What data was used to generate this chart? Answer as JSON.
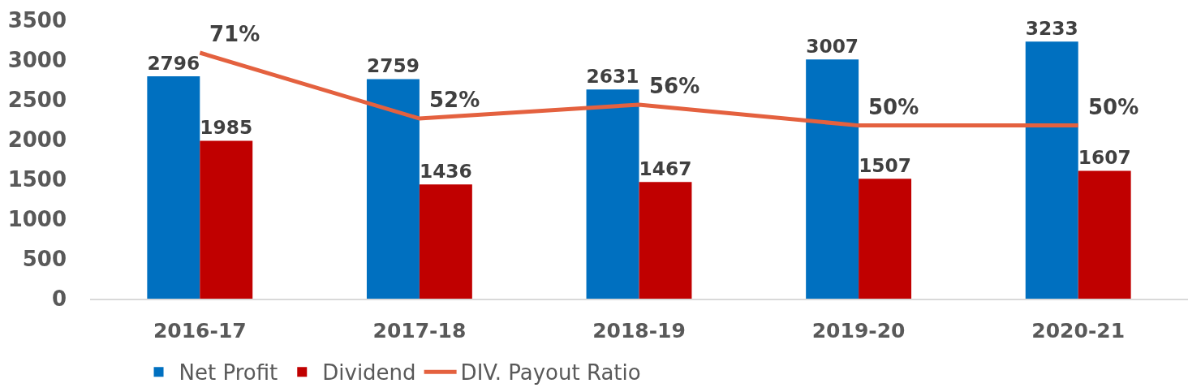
{
  "chart_data": {
    "type": "bar",
    "categories": [
      "2016-17",
      "2017-18",
      "2018-19",
      "2019-20",
      "2020-21"
    ],
    "series": [
      {
        "name": "Net Profit",
        "color": "#0070c0",
        "values": [
          2796,
          2759,
          2631,
          3007,
          3233
        ],
        "value_labels": [
          "2796",
          "2759",
          "2631",
          "3007",
          "3233"
        ]
      },
      {
        "name": "Dividend",
        "color": "#c00000",
        "values": [
          1985,
          1436,
          1467,
          1507,
          1607
        ],
        "value_labels": [
          "1985",
          "1436",
          "1467",
          "1507",
          "1607"
        ]
      },
      {
        "name": "DIV. Payout Ratio",
        "type": "line",
        "axis": "y2",
        "color": "#e4613f",
        "values": [
          71,
          52,
          56,
          50,
          50
        ],
        "value_labels": [
          "71%",
          "52%",
          "56%",
          "50%",
          "50%"
        ]
      }
    ],
    "ylim": [
      0,
      3500
    ],
    "yticks": [
      0,
      500,
      1000,
      1500,
      2000,
      2500,
      3000,
      3500
    ],
    "legend": "bottom",
    "tick_labels": "xy"
  }
}
